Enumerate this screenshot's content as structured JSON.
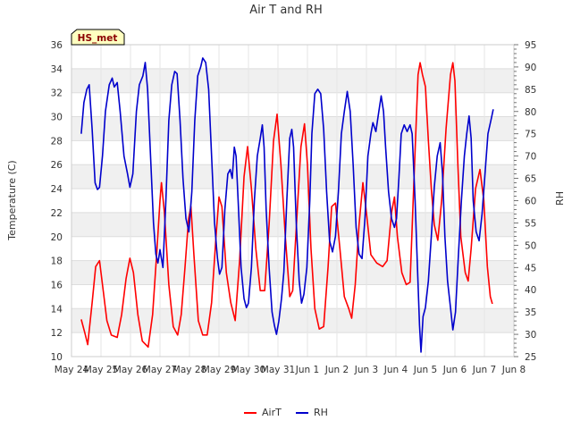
{
  "chart_data": {
    "type": "line",
    "title": "Air T and RH",
    "xlabel": "",
    "ylabel": "Temperature (C)",
    "ylabel_right": "RH",
    "badge": "HS_met",
    "xlim": [
      0,
      15
    ],
    "ylim": [
      10,
      36
    ],
    "ylim_right": [
      25,
      95
    ],
    "x_ticks": [
      {
        "v": 0,
        "label": "May 24"
      },
      {
        "v": 1,
        "label": "May 25"
      },
      {
        "v": 2,
        "label": "May 26"
      },
      {
        "v": 3,
        "label": "May 27"
      },
      {
        "v": 4,
        "label": "May 28"
      },
      {
        "v": 5,
        "label": "May 29"
      },
      {
        "v": 6,
        "label": "May 30"
      },
      {
        "v": 7,
        "label": "May 31"
      },
      {
        "v": 8,
        "label": "Jun 1"
      },
      {
        "v": 9,
        "label": "Jun 2"
      },
      {
        "v": 10,
        "label": "Jun 3"
      },
      {
        "v": 11,
        "label": "Jun 4"
      },
      {
        "v": 12,
        "label": "Jun 5"
      },
      {
        "v": 13,
        "label": "Jun 6"
      },
      {
        "v": 14,
        "label": "Jun 7"
      },
      {
        "v": 15,
        "label": "Jun 8"
      }
    ],
    "y_ticks": [
      10,
      12,
      14,
      16,
      18,
      20,
      22,
      24,
      26,
      28,
      30,
      32,
      34,
      36
    ],
    "y_ticks_right": [
      25,
      30,
      35,
      40,
      45,
      50,
      55,
      60,
      65,
      70,
      75,
      80,
      85,
      90,
      95
    ],
    "legend": {
      "position": "bottom-center"
    },
    "series": [
      {
        "name": "AirT",
        "axis": "left",
        "color": "#ff0000",
        "points": [
          [
            0.33,
            13.1
          ],
          [
            0.45,
            12.0
          ],
          [
            0.55,
            11.0
          ],
          [
            0.7,
            14.5
          ],
          [
            0.82,
            17.5
          ],
          [
            0.95,
            18.0
          ],
          [
            1.05,
            16.0
          ],
          [
            1.2,
            13.0
          ],
          [
            1.35,
            11.8
          ],
          [
            1.55,
            11.6
          ],
          [
            1.7,
            13.5
          ],
          [
            1.85,
            16.5
          ],
          [
            1.98,
            18.2
          ],
          [
            2.1,
            17.0
          ],
          [
            2.25,
            13.5
          ],
          [
            2.4,
            11.3
          ],
          [
            2.6,
            10.8
          ],
          [
            2.75,
            13.5
          ],
          [
            2.9,
            19.0
          ],
          [
            3.0,
            23.0
          ],
          [
            3.05,
            24.5
          ],
          [
            3.15,
            22.0
          ],
          [
            3.3,
            16.0
          ],
          [
            3.45,
            12.5
          ],
          [
            3.6,
            11.8
          ],
          [
            3.72,
            13.5
          ],
          [
            3.85,
            17.5
          ],
          [
            3.97,
            21.5
          ],
          [
            4.05,
            22.5
          ],
          [
            4.15,
            18.5
          ],
          [
            4.3,
            13.0
          ],
          [
            4.45,
            11.8
          ],
          [
            4.6,
            11.8
          ],
          [
            4.75,
            14.5
          ],
          [
            4.9,
            20.0
          ],
          [
            5.0,
            23.3
          ],
          [
            5.1,
            22.5
          ],
          [
            5.25,
            17.0
          ],
          [
            5.4,
            14.5
          ],
          [
            5.55,
            13.0
          ],
          [
            5.7,
            18.0
          ],
          [
            5.85,
            25.0
          ],
          [
            5.97,
            27.5
          ],
          [
            6.1,
            24.0
          ],
          [
            6.25,
            19.0
          ],
          [
            6.4,
            15.5
          ],
          [
            6.55,
            15.5
          ],
          [
            6.7,
            21.0
          ],
          [
            6.85,
            28.0
          ],
          [
            6.97,
            30.2
          ],
          [
            7.1,
            26.0
          ],
          [
            7.25,
            20.0
          ],
          [
            7.4,
            15.0
          ],
          [
            7.5,
            15.5
          ],
          [
            7.65,
            22.0
          ],
          [
            7.78,
            27.5
          ],
          [
            7.9,
            29.4
          ],
          [
            8.0,
            26.0
          ],
          [
            8.12,
            19.0
          ],
          [
            8.25,
            14.0
          ],
          [
            8.4,
            12.3
          ],
          [
            8.55,
            12.5
          ],
          [
            8.7,
            17.5
          ],
          [
            8.82,
            22.5
          ],
          [
            8.95,
            22.8
          ],
          [
            9.1,
            19.0
          ],
          [
            9.25,
            15.0
          ],
          [
            9.4,
            14.0
          ],
          [
            9.5,
            13.2
          ],
          [
            9.62,
            16.0
          ],
          [
            9.75,
            21.0
          ],
          [
            9.88,
            24.5
          ],
          [
            10.0,
            22.0
          ],
          [
            10.15,
            18.5
          ],
          [
            10.35,
            17.8
          ],
          [
            10.55,
            17.5
          ],
          [
            10.7,
            18.0
          ],
          [
            10.85,
            22.0
          ],
          [
            10.95,
            23.3
          ],
          [
            11.05,
            20.0
          ],
          [
            11.2,
            17.0
          ],
          [
            11.35,
            16.0
          ],
          [
            11.48,
            16.2
          ],
          [
            11.6,
            24.0
          ],
          [
            11.75,
            33.5
          ],
          [
            11.82,
            34.5
          ],
          [
            11.9,
            33.5
          ],
          [
            12.0,
            32.5
          ],
          [
            12.1,
            28.0
          ],
          [
            12.2,
            24.0
          ],
          [
            12.3,
            21.0
          ],
          [
            12.42,
            19.7
          ],
          [
            12.55,
            23.0
          ],
          [
            12.7,
            29.0
          ],
          [
            12.85,
            33.5
          ],
          [
            12.93,
            34.5
          ],
          [
            13.0,
            33.0
          ],
          [
            13.1,
            26.0
          ],
          [
            13.2,
            20.0
          ],
          [
            13.35,
            17.0
          ],
          [
            13.45,
            16.3
          ],
          [
            13.55,
            19.0
          ],
          [
            13.7,
            24.0
          ],
          [
            13.85,
            25.6
          ],
          [
            13.98,
            23.0
          ],
          [
            14.1,
            17.5
          ],
          [
            14.2,
            15.0
          ],
          [
            14.27,
            14.4
          ]
        ]
      },
      {
        "name": "RH",
        "axis": "right",
        "color": "#0000cc",
        "points": [
          [
            0.33,
            75.0
          ],
          [
            0.42,
            82.0
          ],
          [
            0.52,
            85.0
          ],
          [
            0.6,
            86.0
          ],
          [
            0.7,
            76.0
          ],
          [
            0.8,
            64.0
          ],
          [
            0.88,
            62.5
          ],
          [
            0.95,
            63.0
          ],
          [
            1.05,
            70.0
          ],
          [
            1.15,
            80.0
          ],
          [
            1.28,
            86.0
          ],
          [
            1.38,
            87.5
          ],
          [
            1.45,
            85.5
          ],
          [
            1.55,
            86.5
          ],
          [
            1.65,
            80.0
          ],
          [
            1.78,
            70.0
          ],
          [
            1.9,
            66.0
          ],
          [
            1.98,
            63.0
          ],
          [
            2.08,
            66.0
          ],
          [
            2.2,
            80.0
          ],
          [
            2.3,
            86.0
          ],
          [
            2.42,
            88.0
          ],
          [
            2.5,
            91.0
          ],
          [
            2.58,
            85.0
          ],
          [
            2.68,
            70.0
          ],
          [
            2.78,
            55.0
          ],
          [
            2.86,
            48.0
          ],
          [
            2.93,
            46.0
          ],
          [
            3.0,
            49.0
          ],
          [
            3.1,
            45.0
          ],
          [
            3.2,
            60.0
          ],
          [
            3.3,
            78.0
          ],
          [
            3.4,
            86.0
          ],
          [
            3.5,
            89.0
          ],
          [
            3.58,
            88.5
          ],
          [
            3.68,
            78.0
          ],
          [
            3.78,
            65.0
          ],
          [
            3.88,
            56.0
          ],
          [
            3.98,
            53.0
          ],
          [
            4.08,
            62.0
          ],
          [
            4.18,
            78.0
          ],
          [
            4.28,
            88.0
          ],
          [
            4.38,
            90.0
          ],
          [
            4.45,
            92.0
          ],
          [
            4.55,
            91.0
          ],
          [
            4.65,
            85.0
          ],
          [
            4.75,
            70.0
          ],
          [
            4.85,
            55.0
          ],
          [
            4.95,
            47.0
          ],
          [
            5.02,
            43.5
          ],
          [
            5.1,
            45.0
          ],
          [
            5.2,
            58.0
          ],
          [
            5.3,
            66.0
          ],
          [
            5.38,
            67.0
          ],
          [
            5.45,
            65.0
          ],
          [
            5.52,
            72.0
          ],
          [
            5.58,
            70.0
          ],
          [
            5.65,
            60.0
          ],
          [
            5.75,
            45.0
          ],
          [
            5.85,
            38.0
          ],
          [
            5.93,
            36.0
          ],
          [
            6.0,
            37.0
          ],
          [
            6.1,
            45.0
          ],
          [
            6.2,
            60.0
          ],
          [
            6.3,
            70.0
          ],
          [
            6.4,
            74.0
          ],
          [
            6.47,
            77.0
          ],
          [
            6.53,
            72.0
          ],
          [
            6.6,
            58.0
          ],
          [
            6.7,
            45.0
          ],
          [
            6.8,
            35.0
          ],
          [
            6.88,
            32.0
          ],
          [
            6.95,
            30.0
          ],
          [
            7.03,
            33.0
          ],
          [
            7.12,
            38.0
          ],
          [
            7.2,
            44.0
          ],
          [
            7.3,
            60.0
          ],
          [
            7.4,
            74.0
          ],
          [
            7.47,
            76.0
          ],
          [
            7.53,
            72.0
          ],
          [
            7.62,
            55.0
          ],
          [
            7.72,
            42.0
          ],
          [
            7.8,
            37.0
          ],
          [
            7.88,
            39.0
          ],
          [
            7.98,
            45.0
          ],
          [
            8.08,
            60.0
          ],
          [
            8.15,
            75.0
          ],
          [
            8.25,
            84.0
          ],
          [
            8.35,
            85.0
          ],
          [
            8.45,
            84.0
          ],
          [
            8.55,
            76.0
          ],
          [
            8.65,
            62.0
          ],
          [
            8.75,
            51.0
          ],
          [
            8.85,
            48.5
          ],
          [
            8.95,
            52.0
          ],
          [
            9.05,
            62.0
          ],
          [
            9.15,
            75.0
          ],
          [
            9.25,
            80.0
          ],
          [
            9.35,
            84.5
          ],
          [
            9.45,
            80.0
          ],
          [
            9.55,
            68.0
          ],
          [
            9.65,
            54.0
          ],
          [
            9.75,
            48.0
          ],
          [
            9.85,
            47.0
          ],
          [
            9.95,
            56.0
          ],
          [
            10.05,
            70.0
          ],
          [
            10.15,
            75.0
          ],
          [
            10.22,
            77.5
          ],
          [
            10.32,
            75.5
          ],
          [
            10.42,
            80.0
          ],
          [
            10.5,
            83.5
          ],
          [
            10.58,
            80.0
          ],
          [
            10.65,
            72.0
          ],
          [
            10.75,
            62.0
          ],
          [
            10.85,
            56.0
          ],
          [
            10.95,
            54.0
          ],
          [
            11.02,
            56.0
          ],
          [
            11.1,
            65.0
          ],
          [
            11.18,
            75.0
          ],
          [
            11.28,
            77.0
          ],
          [
            11.38,
            75.5
          ],
          [
            11.48,
            77.0
          ],
          [
            11.55,
            75.0
          ],
          [
            11.65,
            60.0
          ],
          [
            11.73,
            45.0
          ],
          [
            11.8,
            32.0
          ],
          [
            11.85,
            26.0
          ],
          [
            11.92,
            34.0
          ],
          [
            12.0,
            36.0
          ],
          [
            12.1,
            42.0
          ],
          [
            12.2,
            52.0
          ],
          [
            12.3,
            63.0
          ],
          [
            12.4,
            70.0
          ],
          [
            12.5,
            73.0
          ],
          [
            12.58,
            66.0
          ],
          [
            12.66,
            52.0
          ],
          [
            12.75,
            42.0
          ],
          [
            12.85,
            36.0
          ],
          [
            12.93,
            31.0
          ],
          [
            13.02,
            35.0
          ],
          [
            13.12,
            48.0
          ],
          [
            13.22,
            60.0
          ],
          [
            13.32,
            70.0
          ],
          [
            13.4,
            75.0
          ],
          [
            13.48,
            79.0
          ],
          [
            13.55,
            74.0
          ],
          [
            13.62,
            60.0
          ],
          [
            13.72,
            53.0
          ],
          [
            13.82,
            51.0
          ],
          [
            13.92,
            57.0
          ],
          [
            14.02,
            66.0
          ],
          [
            14.12,
            75.0
          ],
          [
            14.22,
            78.0
          ],
          [
            14.3,
            80.5
          ]
        ]
      }
    ]
  }
}
